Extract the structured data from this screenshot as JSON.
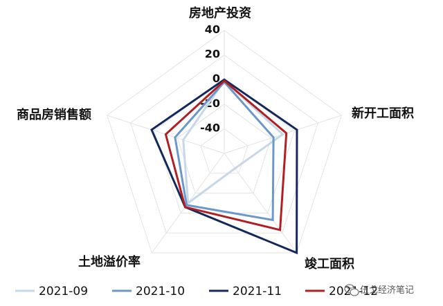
{
  "chart_data": {
    "type": "radar",
    "axes": [
      "房地产投资",
      "新开工面积",
      "竣工面积",
      "土地溢价率",
      "商品房销售额"
    ],
    "r_ticks": [
      -40,
      -20,
      0,
      20,
      40
    ],
    "rlim": [
      -60,
      40
    ],
    "grid": true,
    "legend_position": "bottom",
    "series": [
      {
        "name": "2021-09",
        "color": "#c5d7e8",
        "values": [
          -1,
          -10,
          -45,
          -10,
          -25
        ]
      },
      {
        "name": "2021-10",
        "color": "#6a98cb",
        "values": [
          -2,
          -18,
          7,
          -8,
          -18
        ]
      },
      {
        "name": "2021-11",
        "color": "#13285c",
        "values": [
          0,
          2,
          40,
          -6,
          2
        ]
      },
      {
        "name": "2021-12",
        "color": "#b01f24",
        "values": [
          -1,
          -7,
          17,
          -6,
          -10
        ]
      }
    ]
  },
  "watermark": {
    "text": "伍戈经济笔记",
    "icon": "wechat-icon"
  }
}
